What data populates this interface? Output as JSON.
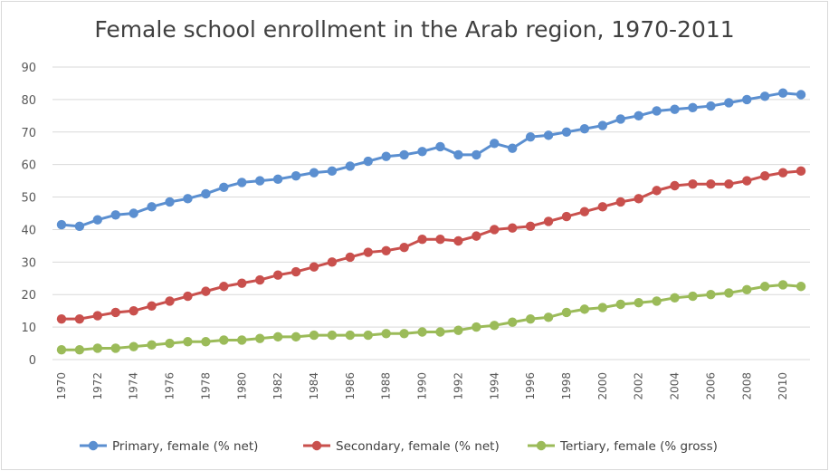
{
  "chart_data": {
    "type": "line",
    "title": "Female school enrollment in the Arab region, 1970-2011",
    "xlabel": "",
    "ylabel": "",
    "ylim": [
      0,
      90
    ],
    "yticks": [
      0,
      10,
      20,
      30,
      40,
      50,
      60,
      70,
      80,
      90
    ],
    "x": [
      1970,
      1971,
      1972,
      1973,
      1974,
      1975,
      1976,
      1977,
      1978,
      1979,
      1980,
      1981,
      1982,
      1983,
      1984,
      1985,
      1986,
      1987,
      1988,
      1989,
      1990,
      1991,
      1992,
      1993,
      1994,
      1995,
      1996,
      1997,
      1998,
      1999,
      2000,
      2001,
      2002,
      2003,
      2004,
      2005,
      2006,
      2007,
      2008,
      2009,
      2010,
      2011
    ],
    "xticks": [
      "1970",
      "1972",
      "1974",
      "1976",
      "1978",
      "1980",
      "1982",
      "1984",
      "1986",
      "1988",
      "1990",
      "1992",
      "1994",
      "1996",
      "1998",
      "2000",
      "2002",
      "2004",
      "2006",
      "2008",
      "2010"
    ],
    "grid": true,
    "legend_position": "bottom",
    "series": [
      {
        "name": "Primary, female (% net)",
        "color": "#5b8fd0",
        "values": [
          41.5,
          41,
          43,
          44.5,
          45,
          47,
          48.5,
          49.5,
          51,
          53,
          54.5,
          55,
          55.5,
          56.5,
          57.5,
          58,
          59.5,
          61,
          62.5,
          63,
          64,
          65.5,
          63,
          63,
          66.5,
          65,
          68.5,
          69,
          70,
          71,
          72,
          74,
          75,
          76.5,
          77,
          77.5,
          78,
          79,
          80,
          81,
          82,
          81.5
        ]
      },
      {
        "name": "Secondary, female (% net)",
        "color": "#c9504d",
        "values": [
          12.5,
          12.5,
          13.5,
          14.5,
          15,
          16.5,
          18,
          19.5,
          21,
          22.5,
          23.5,
          24.5,
          26,
          27,
          28.5,
          30,
          31.5,
          33,
          33.5,
          34.5,
          37,
          37,
          36.5,
          38,
          40,
          40.5,
          41,
          42.5,
          44,
          45.5,
          47,
          48.5,
          49.5,
          52,
          53.5,
          54,
          54,
          54,
          55,
          56.5,
          57.5,
          58
        ]
      },
      {
        "name": "Tertiary, female (% gross)",
        "color": "#9bbb59",
        "values": [
          3,
          3,
          3.5,
          3.5,
          4,
          4.5,
          5,
          5.5,
          5.5,
          6,
          6,
          6.5,
          7,
          7,
          7.5,
          7.5,
          7.5,
          7.5,
          8,
          8,
          8.5,
          8.5,
          9,
          10,
          10.5,
          11.5,
          12.5,
          13,
          14.5,
          15.5,
          16,
          17,
          17.5,
          18,
          19,
          19.5,
          20,
          20.5,
          21.5,
          22.5,
          23,
          22.5
        ]
      }
    ]
  }
}
